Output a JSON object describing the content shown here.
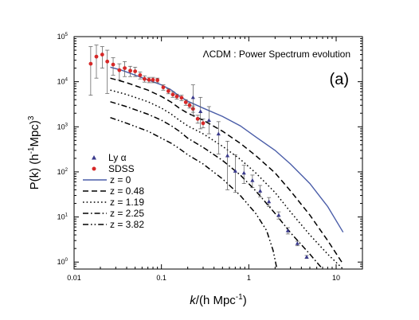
{
  "chart_data": {
    "type": "line",
    "annotation": "ΛCDM : Power Spectrum evolution",
    "panel_label": "(a)",
    "xlabel": {
      "italic": "k",
      "pre": "/(h Mpc",
      "sup": "-1",
      "post": ")"
    },
    "ylabel": {
      "pre": "P(k) (h",
      "sup1": "-1",
      "mid": "Mpc)",
      "sup2": "3"
    },
    "x_scale": "log",
    "y_scale": "log",
    "xlim": [
      0.01,
      20
    ],
    "ylim": [
      0.7,
      100000
    ],
    "x_ticks": [
      {
        "value": 0.01,
        "label": "0.01"
      },
      {
        "value": 0.1,
        "label": "0.1"
      },
      {
        "value": 1,
        "label": "1"
      },
      {
        "value": 10,
        "label": "10"
      }
    ],
    "y_ticks": [
      {
        "value": 1,
        "base": "10",
        "exp": "0"
      },
      {
        "value": 10,
        "base": "10",
        "exp": "1"
      },
      {
        "value": 100,
        "base": "10",
        "exp": "2"
      },
      {
        "value": 1000,
        "base": "10",
        "exp": "3"
      },
      {
        "value": 10000,
        "base": "10",
        "exp": "4"
      },
      {
        "value": 100000,
        "base": "10",
        "exp": "5"
      }
    ],
    "legend": {
      "position": "left",
      "markers": [
        {
          "label": "Ly α",
          "marker": "triangle",
          "color": "#3a3a8c"
        },
        {
          "label": "SDSS",
          "marker": "circle",
          "color": "#d62828"
        }
      ],
      "lines": [
        {
          "label": "z = 0",
          "style": "solid",
          "color": "#4a5da8"
        },
        {
          "label": "z = 0.48",
          "style": "dash",
          "color": "#000000"
        },
        {
          "label": "z = 1.19",
          "style": "dot",
          "color": "#000000"
        },
        {
          "label": "z = 2.25",
          "style": "dashdot",
          "color": "#000000"
        },
        {
          "label": "z = 3.82",
          "style": "dashdotdot",
          "color": "#000000"
        }
      ]
    },
    "series": [
      {
        "name": "z = 0",
        "style": "solid",
        "color": "#4a5da8",
        "points": [
          [
            0.026,
            21000
          ],
          [
            0.035,
            18000
          ],
          [
            0.05,
            14000
          ],
          [
            0.07,
            11000
          ],
          [
            0.1,
            8500
          ],
          [
            0.13,
            6500
          ],
          [
            0.16,
            4800
          ],
          [
            0.2,
            3700
          ],
          [
            0.3,
            2600
          ],
          [
            0.5,
            1700
          ],
          [
            0.8,
            1050
          ],
          [
            1.2,
            600
          ],
          [
            2,
            300
          ],
          [
            3,
            150
          ],
          [
            5,
            55
          ],
          [
            8,
            17
          ],
          [
            12,
            4.6
          ]
        ]
      },
      {
        "name": "z = 0.48",
        "style": "dash",
        "color": "#000000",
        "points": [
          [
            0.026,
            12000
          ],
          [
            0.04,
            9500
          ],
          [
            0.07,
            6500
          ],
          [
            0.1,
            4700
          ],
          [
            0.13,
            3500
          ],
          [
            0.16,
            2600
          ],
          [
            0.2,
            2000
          ],
          [
            0.3,
            1400
          ],
          [
            0.5,
            800
          ],
          [
            0.8,
            430
          ],
          [
            1.2,
            230
          ],
          [
            2,
            95
          ],
          [
            3,
            38
          ],
          [
            5,
            11
          ],
          [
            8,
            3
          ],
          [
            12,
            0.9
          ]
        ]
      },
      {
        "name": "z = 1.19",
        "style": "dot",
        "color": "#000000",
        "points": [
          [
            0.026,
            6500
          ],
          [
            0.04,
            5200
          ],
          [
            0.07,
            3600
          ],
          [
            0.1,
            2600
          ],
          [
            0.13,
            1900
          ],
          [
            0.16,
            1400
          ],
          [
            0.2,
            1050
          ],
          [
            0.3,
            700
          ],
          [
            0.5,
            370
          ],
          [
            0.8,
            190
          ],
          [
            1.2,
            95
          ],
          [
            2,
            35
          ],
          [
            3,
            13
          ],
          [
            5,
            4
          ],
          [
            8,
            1.5
          ],
          [
            12,
            0.7
          ]
        ]
      },
      {
        "name": "z = 2.25",
        "style": "dashdot",
        "color": "#000000",
        "points": [
          [
            0.026,
            3600
          ],
          [
            0.04,
            2800
          ],
          [
            0.07,
            1900
          ],
          [
            0.1,
            1400
          ],
          [
            0.13,
            1050
          ],
          [
            0.16,
            800
          ],
          [
            0.2,
            560
          ],
          [
            0.3,
            350
          ],
          [
            0.5,
            180
          ],
          [
            0.8,
            85
          ],
          [
            1.2,
            38
          ],
          [
            2,
            12
          ],
          [
            3,
            4.5
          ],
          [
            5,
            1.5
          ],
          [
            7,
            0.7
          ]
        ]
      },
      {
        "name": "z = 3.82",
        "style": "dashdotdot",
        "color": "#000000",
        "points": [
          [
            0.026,
            1600
          ],
          [
            0.04,
            1200
          ],
          [
            0.07,
            800
          ],
          [
            0.1,
            560
          ],
          [
            0.13,
            430
          ],
          [
            0.16,
            330
          ],
          [
            0.2,
            240
          ],
          [
            0.3,
            150
          ],
          [
            0.5,
            70
          ],
          [
            0.8,
            30
          ],
          [
            1.2,
            12
          ],
          [
            1.6,
            5
          ],
          [
            1.9,
            1.8
          ],
          [
            2.1,
            0.7
          ]
        ]
      }
    ],
    "sdss": {
      "name": "SDSS",
      "color": "#d62828",
      "points": [
        {
          "x": 0.0155,
          "y": 25000,
          "lo": 5000,
          "hi": 60000
        },
        {
          "x": 0.018,
          "y": 36000,
          "lo": 12000,
          "hi": 65000
        },
        {
          "x": 0.021,
          "y": 40000,
          "lo": 20000,
          "hi": 60000
        },
        {
          "x": 0.024,
          "y": 28000,
          "lo": 5500,
          "hi": 50000
        },
        {
          "x": 0.028,
          "y": 24000,
          "lo": 14000,
          "hi": 34000
        },
        {
          "x": 0.033,
          "y": 18000,
          "lo": 11000,
          "hi": 25000
        },
        {
          "x": 0.038,
          "y": 20000,
          "lo": 13000,
          "hi": 28000
        },
        {
          "x": 0.044,
          "y": 17500,
          "lo": 13000,
          "hi": 22000
        },
        {
          "x": 0.05,
          "y": 17000,
          "lo": 13000,
          "hi": 21000
        },
        {
          "x": 0.057,
          "y": 14000,
          "lo": 11500,
          "hi": 16500
        },
        {
          "x": 0.064,
          "y": 11500,
          "lo": 9800,
          "hi": 13500
        },
        {
          "x": 0.072,
          "y": 11000,
          "lo": 9500,
          "hi": 12500
        },
        {
          "x": 0.08,
          "y": 11000,
          "lo": 9500,
          "hi": 12500
        },
        {
          "x": 0.09,
          "y": 10800,
          "lo": 9500,
          "hi": 12000
        },
        {
          "x": 0.105,
          "y": 7500,
          "lo": 6500,
          "hi": 8500
        },
        {
          "x": 0.12,
          "y": 6200,
          "lo": 5400,
          "hi": 7000
        },
        {
          "x": 0.135,
          "y": 5200,
          "lo": 4500,
          "hi": 6000
        },
        {
          "x": 0.15,
          "y": 4700,
          "lo": 4100,
          "hi": 5300
        },
        {
          "x": 0.17,
          "y": 4400,
          "lo": 3800,
          "hi": 5000
        },
        {
          "x": 0.19,
          "y": 3500,
          "lo": 3000,
          "hi": 4000
        },
        {
          "x": 0.21,
          "y": 3000,
          "lo": 2600,
          "hi": 3400
        },
        {
          "x": 0.23,
          "y": 2500,
          "lo": 2100,
          "hi": 2900
        },
        {
          "x": 0.26,
          "y": 1500,
          "lo": 1200,
          "hi": 1800
        },
        {
          "x": 0.3,
          "y": 1200,
          "lo": 950,
          "hi": 1500
        }
      ]
    },
    "lyalpha": {
      "name": "Ly α",
      "color": "#3a3a8c",
      "points": [
        {
          "x": 0.23,
          "y": 4500,
          "lo": 1800,
          "hi": 8500
        },
        {
          "x": 0.28,
          "y": 2200,
          "lo": 900,
          "hi": 4500
        },
        {
          "x": 0.35,
          "y": 1400,
          "lo": 700,
          "hi": 2800
        },
        {
          "x": 0.45,
          "y": 700,
          "lo": 250,
          "hi": 1300
        },
        {
          "x": 0.57,
          "y": 230,
          "lo": 40,
          "hi": 480
        },
        {
          "x": 0.7,
          "y": 105,
          "lo": 35,
          "hi": 240
        },
        {
          "x": 0.88,
          "y": 95,
          "lo": 55,
          "hi": 140
        },
        {
          "x": 1.1,
          "y": 65,
          "lo": 45,
          "hi": 85
        },
        {
          "x": 1.35,
          "y": 38,
          "lo": 28,
          "hi": 50
        },
        {
          "x": 1.7,
          "y": 22,
          "lo": 17,
          "hi": 27
        },
        {
          "x": 2.2,
          "y": 11,
          "lo": 9,
          "hi": 13
        },
        {
          "x": 2.8,
          "y": 5,
          "lo": 4.2,
          "hi": 5.8
        },
        {
          "x": 3.6,
          "y": 2.6,
          "lo": 2.3,
          "hi": 2.9
        },
        {
          "x": 4.6,
          "y": 1.3,
          "lo": 1.2,
          "hi": 1.4
        }
      ]
    }
  }
}
